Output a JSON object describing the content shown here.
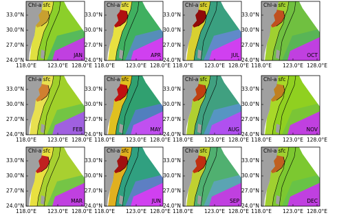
{
  "panels": [
    {
      "title": "Chl-a sfc",
      "month": "JAN"
    },
    {
      "title": "Chl-a sfc",
      "month": "FEB"
    },
    {
      "title": "Chl-a sfc",
      "month": "MAR"
    },
    {
      "title": "Chl-a sfc",
      "month": "APR"
    },
    {
      "title": "Chl-a sfc",
      "month": "MAY"
    },
    {
      "title": "Chl-a sfc",
      "month": "JUN"
    },
    {
      "title": "Chl-a sfc",
      "month": "JUL"
    },
    {
      "title": "Chl-a sfc",
      "month": "AUG"
    },
    {
      "title": "Chl-a sfc",
      "month": "SEP"
    },
    {
      "title": "Chl-a sfc",
      "month": "OCT"
    },
    {
      "title": "Chl-a sfc",
      "month": "NOV"
    },
    {
      "title": "Chl-a sfc",
      "month": "DEC"
    }
  ],
  "lat_labels": [
    "33.0°N",
    "30.0°N",
    "27.0°N",
    "24.0°N"
  ],
  "lon_labels": [
    "118.0°E",
    "123.0°E",
    "128.0°E"
  ]
}
